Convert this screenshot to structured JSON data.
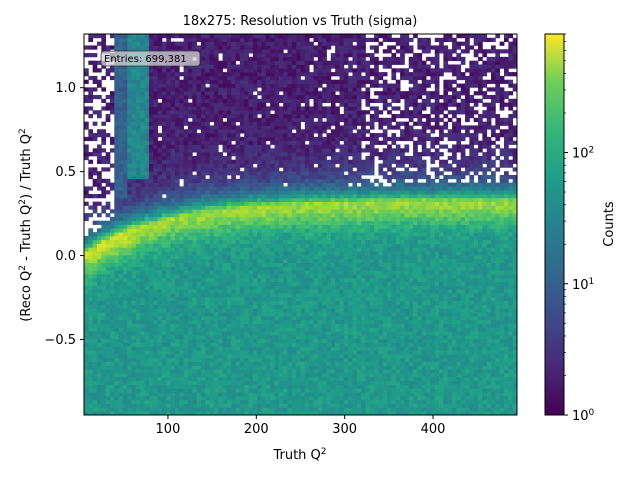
{
  "chart_data": {
    "type": "heatmap",
    "title": "18x275: Resolution vs Truth (sigma)",
    "xlabel": "Truth Q",
    "ylabel_parts": [
      "(Reco Q",
      "2",
      " - Truth Q",
      "2",
      ") / Truth Q",
      "2"
    ],
    "xlabel_sup": "2",
    "xlim": [
      5,
      495
    ],
    "ylim": [
      -0.95,
      1.32
    ],
    "x_ticks": [
      100,
      200,
      300,
      400
    ],
    "x_tick_labels": [
      "100",
      "200",
      "300",
      "400"
    ],
    "y_ticks": [
      -0.5,
      0.0,
      0.5,
      1.0
    ],
    "y_tick_labels": [
      "−0.5",
      "0.0",
      "0.5",
      "1.0"
    ],
    "bins_x": 100,
    "bins_y": 100,
    "colorbar": {
      "label": "Counts",
      "scale": "log",
      "range": [
        1,
        800
      ],
      "tick_values": [
        1,
        10,
        100
      ],
      "tick_base": "10",
      "tick_exponents": [
        "0",
        "1",
        "2"
      ]
    },
    "annotation": "Entries: 699,381",
    "features": {
      "ridge_peak_x": 35,
      "ridge_peak_y": 0.1,
      "ridge_high_x_y": 0.33,
      "colormap": "viridis"
    }
  }
}
